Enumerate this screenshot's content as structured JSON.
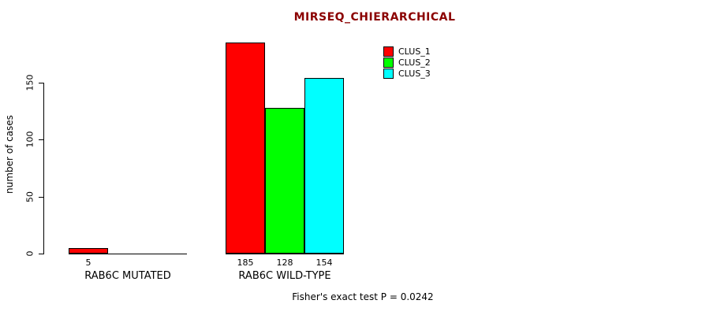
{
  "page": {
    "background": "#ffffff"
  },
  "chart_data": {
    "type": "bar",
    "title": "MIRSEQ_CHIERARCHICAL",
    "title_color": "#8b0000",
    "ylabel": "number of cases",
    "xlabel": "",
    "ylim": [
      0,
      150
    ],
    "yticks": [
      0,
      50,
      100,
      150
    ],
    "grid": false,
    "legend_position": "top-right",
    "legend": [
      {
        "label": "CLUS_1",
        "color": "#ff0000"
      },
      {
        "label": "CLUS_2",
        "color": "#00ff00"
      },
      {
        "label": "CLUS_3",
        "color": "#00ffff"
      }
    ],
    "groups": [
      {
        "label": "RAB6C MUTATED",
        "bars": [
          {
            "series": "CLUS_1",
            "value": 5,
            "value_label": "5",
            "color": "#ff0000"
          }
        ]
      },
      {
        "label": "RAB6C WILD-TYPE",
        "bars": [
          {
            "series": "CLUS_1",
            "value": 185,
            "value_label": "185",
            "color": "#ff0000"
          },
          {
            "series": "CLUS_2",
            "value": 128,
            "value_label": "128",
            "color": "#00ff00"
          },
          {
            "series": "CLUS_3",
            "value": 154,
            "value_label": "154",
            "color": "#00ffff"
          }
        ]
      }
    ],
    "annotation": "Fisher's exact test P = 0.0242"
  }
}
